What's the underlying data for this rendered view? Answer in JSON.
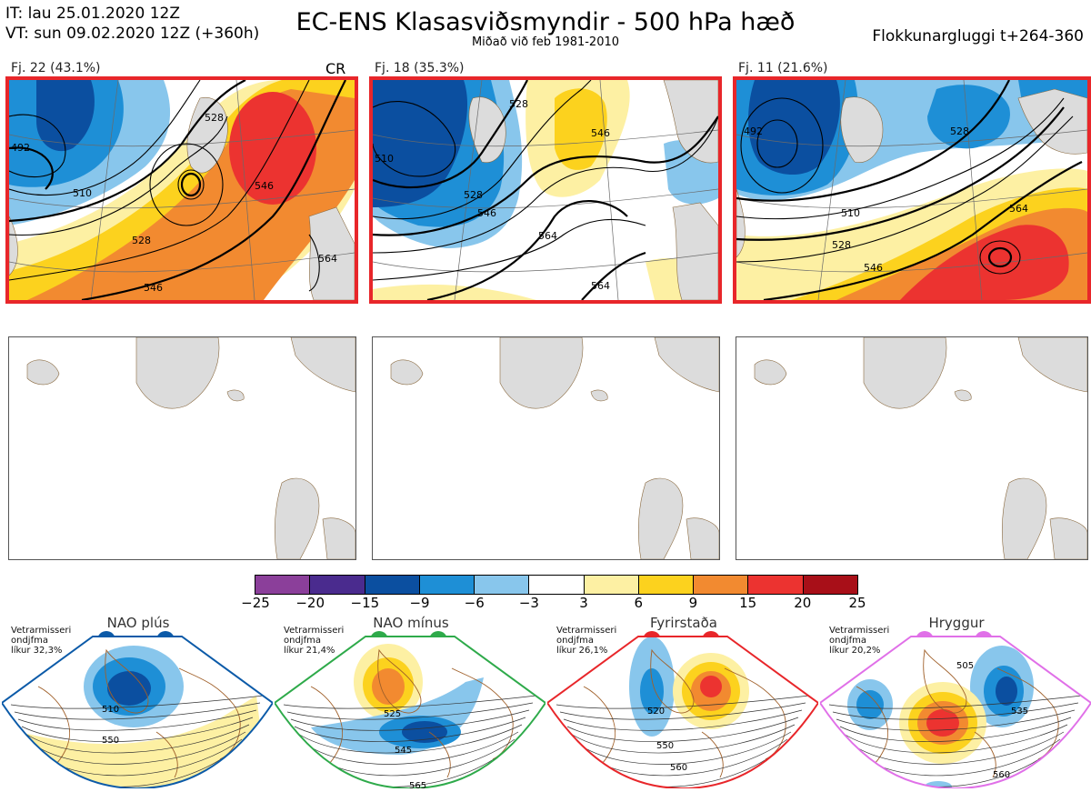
{
  "header": {
    "it": "IT: lau 25.01.2020 12Z",
    "vt": "VT: sun 09.02.2020 12Z  (+360h)",
    "title": "EC-ENS Klasasviðsmyndir - 500 hPa hæð",
    "subtitle": "Miðað við feb 1981-2010",
    "window": "Flokkunargluggi t+264-360"
  },
  "clusters": [
    {
      "label": "Fj. 22 (43.1%)",
      "tag": "CR",
      "contours": [
        "492",
        "510",
        "528",
        "528",
        "546",
        "546",
        "564"
      ]
    },
    {
      "label": "Fj. 18 (35.3%)",
      "tag": "",
      "contours": [
        "510",
        "528",
        "528",
        "546",
        "546",
        "564",
        "564"
      ]
    },
    {
      "label": "Fj. 11 (21.6%)",
      "tag": "",
      "contours": [
        "492",
        "510",
        "528",
        "528",
        "546",
        "564"
      ]
    }
  ],
  "colorbar": {
    "ticks": [
      "−25",
      "−20",
      "−15",
      "−9",
      "−6",
      "−3",
      "3",
      "6",
      "9",
      "15",
      "20",
      "25"
    ],
    "colors": [
      "#8b3f9a",
      "#4a2b8e",
      "#0b4fa0",
      "#1e8fd6",
      "#88c6ec",
      "#ffffff",
      "#fdf0a3",
      "#fcd21e",
      "#f28a30",
      "#ec3330",
      "#a80f18"
    ]
  },
  "regimes": [
    {
      "name": "NAO plús",
      "note1": "Vetrarmisseri",
      "note2": "ondjfma",
      "note3": "líkur 32,3%",
      "color": "#0b5aa8",
      "contours": [
        "510",
        "550"
      ]
    },
    {
      "name": "NAO mínus",
      "note1": "Vetrarmisseri",
      "note2": "ondjfma",
      "note3": "líkur 21,4%",
      "color": "#2eaa4a",
      "contours": [
        "525",
        "545",
        "565"
      ]
    },
    {
      "name": "Fyrirstaða",
      "note1": "Vetrarmisseri",
      "note2": "ondjfma",
      "note3": "líkur 26,1%",
      "color": "#e8262a",
      "contours": [
        "520",
        "550",
        "560"
      ]
    },
    {
      "name": "Hryggur",
      "note1": "Vetrarmisseri",
      "note2": "ondjfma",
      "note3": "líkur 20,2%",
      "color": "#e070e8",
      "contours": [
        "505",
        "535",
        "560"
      ]
    }
  ]
}
